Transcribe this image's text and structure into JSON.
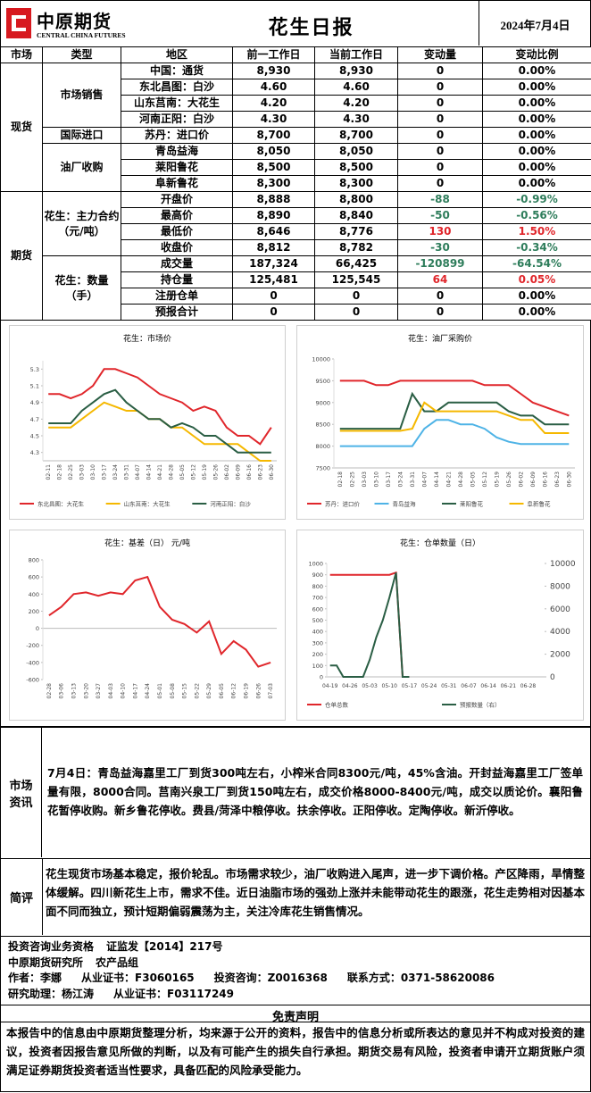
{
  "header": {
    "logo_cn": "中原期货",
    "logo_en": "CENTRAL CHINA FUTURES",
    "title": "花生日报",
    "date": "2024年7月4日"
  },
  "table": {
    "columns": [
      "市场",
      "类型",
      "地区",
      "前一工作日",
      "当前工作日",
      "变动量",
      "变动比例"
    ],
    "markets": [
      "现货",
      "期货"
    ],
    "types": [
      "市场销售",
      "国际进口",
      "油厂收购",
      "花生：主力合约（元/吨）",
      "花生：数量（手）"
    ],
    "rows": [
      [
        "中国：通货",
        "8,930",
        "8,930",
        "0",
        "0.00%"
      ],
      [
        "东北昌图：白沙",
        "4.60",
        "4.60",
        "0",
        "0.00%"
      ],
      [
        "山东莒南：大花生",
        "4.20",
        "4.20",
        "0",
        "0.00%"
      ],
      [
        "河南正阳：白沙",
        "4.30",
        "4.30",
        "0",
        "0.00%"
      ],
      [
        "苏丹：进口价",
        "8,700",
        "8,700",
        "0",
        "0.00%"
      ],
      [
        "青岛益海",
        "8,050",
        "8,050",
        "0",
        "0.00%"
      ],
      [
        "莱阳鲁花",
        "8,500",
        "8,500",
        "0",
        "0.00%"
      ],
      [
        "阜新鲁花",
        "8,300",
        "8,300",
        "0",
        "0.00%"
      ],
      [
        "开盘价",
        "8,888",
        "8,800",
        "-88",
        "-0.99%"
      ],
      [
        "最高价",
        "8,890",
        "8,840",
        "-50",
        "-0.56%"
      ],
      [
        "最低价",
        "8,646",
        "8,776",
        "130",
        "1.50%"
      ],
      [
        "收盘价",
        "8,812",
        "8,782",
        "-30",
        "-0.34%"
      ],
      [
        "成交量",
        "187,324",
        "66,425",
        "-120899",
        "-64.54%"
      ],
      [
        "持仓量",
        "125,481",
        "125,545",
        "64",
        "0.05%"
      ],
      [
        "注册仓单",
        "0",
        "0",
        "0",
        "0.00%"
      ],
      [
        "预报合计",
        "0",
        "0",
        "0",
        "0.00%"
      ]
    ]
  },
  "chart_data": [
    {
      "type": "line",
      "title": "花生：市场价",
      "categories": [
        "02-11",
        "02-18",
        "02-25",
        "03-03",
        "03-10",
        "03-17",
        "03-24",
        "03-31",
        "04-07",
        "04-14",
        "04-21",
        "04-28",
        "05-05",
        "05-12",
        "05-19",
        "05-26",
        "06-02",
        "06-09",
        "06-16",
        "06-23",
        "06-30"
      ],
      "ylim": [
        4.2,
        5.4
      ],
      "yticks": [
        4.3,
        4.5,
        4.7,
        4.9,
        5.1,
        5.3
      ],
      "series": [
        {
          "name": "东北昌图：大花生",
          "color": "#e0262b",
          "values": [
            5.0,
            5.0,
            4.95,
            5.0,
            5.1,
            5.3,
            5.3,
            5.25,
            5.2,
            5.1,
            5.0,
            4.95,
            4.9,
            4.8,
            4.85,
            4.8,
            4.6,
            4.5,
            4.5,
            4.4,
            4.6
          ]
        },
        {
          "name": "山东莒南：大花生",
          "color": "#f5b800",
          "values": [
            4.6,
            4.6,
            4.6,
            4.7,
            4.8,
            4.9,
            4.85,
            4.8,
            4.8,
            4.7,
            4.7,
            4.6,
            4.6,
            4.5,
            4.4,
            4.4,
            4.4,
            4.4,
            4.3,
            4.2,
            4.2
          ]
        },
        {
          "name": "河南正阳：白沙",
          "color": "#2a5e44",
          "values": [
            4.65,
            4.65,
            4.65,
            4.8,
            4.9,
            5.0,
            5.05,
            4.9,
            4.8,
            4.7,
            4.7,
            4.6,
            4.65,
            4.6,
            4.5,
            4.5,
            4.4,
            4.3,
            4.3,
            4.3,
            4.3
          ]
        }
      ]
    },
    {
      "type": "line",
      "title": "花生：油厂采购价",
      "categories": [
        "02-18",
        "02-25",
        "03-03",
        "03-10",
        "03-17",
        "03-24",
        "03-31",
        "04-07",
        "04-14",
        "04-21",
        "04-28",
        "05-05",
        "05-12",
        "05-19",
        "05-26",
        "06-02",
        "06-09",
        "06-16",
        "06-23",
        "06-30"
      ],
      "ylim": [
        7500,
        10000
      ],
      "yticks": [
        7500,
        8000,
        8500,
        9000,
        9500,
        10000
      ],
      "series": [
        {
          "name": "苏丹：进口价",
          "color": "#e0262b",
          "values": [
            9500,
            9500,
            9500,
            9400,
            9400,
            9500,
            9500,
            9500,
            9500,
            9500,
            9500,
            9500,
            9400,
            9400,
            9400,
            9200,
            9000,
            8900,
            8800,
            8700
          ]
        },
        {
          "name": "青岛益海",
          "color": "#4eb3e6",
          "values": [
            8000,
            8000,
            8000,
            8000,
            8000,
            8000,
            8000,
            8400,
            8600,
            8600,
            8500,
            8500,
            8400,
            8200,
            8100,
            8050,
            8050,
            8050,
            8050,
            8050
          ]
        },
        {
          "name": "莱阳鲁花",
          "color": "#2a5e44",
          "values": [
            8400,
            8400,
            8400,
            8400,
            8400,
            8400,
            9200,
            8800,
            8800,
            9000,
            9000,
            9000,
            9000,
            9000,
            8800,
            8700,
            8700,
            8500,
            8500,
            8500
          ]
        },
        {
          "name": "阜新鲁花",
          "color": "#f5b800",
          "values": [
            8350,
            8350,
            8350,
            8350,
            8350,
            8350,
            8400,
            9000,
            8800,
            8800,
            8800,
            8800,
            8800,
            8800,
            8700,
            8600,
            8600,
            8300,
            8300,
            8300
          ]
        }
      ]
    },
    {
      "type": "line",
      "title": "花生：基差（日）  元/吨",
      "categories": [
        "02-28",
        "03-06",
        "03-13",
        "03-20",
        "03-27",
        "04-03",
        "04-10",
        "04-17",
        "04-24",
        "05-01",
        "05-08",
        "05-15",
        "05-22",
        "05-29",
        "06-05",
        "06-12",
        "06-19",
        "06-26",
        "07-03"
      ],
      "ylim": [
        -600,
        800
      ],
      "yticks": [
        -600,
        -400,
        -200,
        0,
        200,
        400,
        600,
        800
      ],
      "series": [
        {
          "color": "#e0262b",
          "values": [
            150,
            250,
            400,
            420,
            380,
            420,
            400,
            560,
            600,
            250,
            100,
            50,
            -50,
            80,
            -300,
            -150,
            -250,
            -450,
            -400
          ]
        }
      ]
    },
    {
      "type": "line",
      "title": "花生：仓单数量（日）",
      "categories": [
        "04-19",
        null,
        null,
        "04-26",
        null,
        null,
        "05-03",
        null,
        null,
        "05-10",
        null,
        null,
        "05-17",
        null,
        null,
        "05-24",
        null,
        null,
        "05-31",
        null,
        null,
        "06-07",
        null,
        null,
        "06-14",
        null,
        null,
        "06-21",
        null,
        null,
        "06-28",
        null,
        null
      ],
      "ylim": [
        0,
        1000
      ],
      "yticks": [
        0,
        100,
        200,
        300,
        400,
        500,
        600,
        700,
        800,
        900,
        1000
      ],
      "y2lim": [
        0,
        10000
      ],
      "y2ticks": [
        0,
        2000,
        4000,
        6000,
        8000,
        10000
      ],
      "series": [
        {
          "name": "仓单总数",
          "color": "#e0262b",
          "values": [
            900,
            900,
            900,
            900,
            900,
            900,
            900,
            900,
            900,
            900,
            920,
            0,
            0,
            null,
            null,
            null,
            null,
            null,
            null,
            null,
            null,
            null,
            null,
            null,
            null,
            null,
            null,
            null,
            null,
            null,
            null,
            null,
            null
          ]
        },
        {
          "name": "预报数量（右）",
          "color": "#2a5e44",
          "axis": "y2",
          "values": [
            1000,
            1000,
            0,
            0,
            0,
            0,
            1500,
            3500,
            5000,
            7000,
            9200,
            0,
            0,
            null,
            null,
            null,
            null,
            null,
            null,
            null,
            null,
            null,
            null,
            null,
            null,
            null,
            null,
            null,
            null,
            null,
            null,
            null,
            null
          ]
        }
      ]
    }
  ],
  "news": {
    "label": "市场资讯",
    "text": "7月4日：青岛益海嘉里工厂到货300吨左右，小榨米合同8300元/吨，45%含油。开封益海嘉里工厂签单量有限，8000合同。莒南兴泉工厂到货150吨左右，成交价格8000-8400元/吨，成交以质论价。襄阳鲁花暂停收购。新乡鲁花停收。费县/菏泽中粮停收。扶余停收。正阳停收。定陶停收。新沂停收。"
  },
  "review": {
    "label": "简评",
    "text": "花生现货市场基本稳定，报价轮乱。市场需求较少，油厂收购进入尾声，进一步下调价格。产区降雨，旱情整体缓解。四川新花生上市，需求不佳。近日油脂市场的强劲上涨并未能带动花生的跟涨，花生走势相对因基本面不同而独立，预计短期偏弱震荡为主，关注冷库花生销售情况。"
  },
  "info": [
    [
      "投资咨询业务资格",
      "证监发【2014】217号"
    ],
    [
      "中原期货研究所",
      "农产品组"
    ],
    [
      "作者：李娜",
      "从业证书：F3060165",
      "投资咨询：Z0016368",
      "联系方式：0371-58620086"
    ],
    [
      "研究助理：杨江涛",
      "从业证书：F03117249"
    ]
  ],
  "disclaimer": {
    "title": "免责声明",
    "text": "本报告中的信息由中原期货整理分析，均来源于公开的资料，报告中的信息分析或所表达的意见并不构成对投资的建议，投资者因报告意见所做的判断，以及有可能产生的损失自行承担。期货交易有风险，投资者申请开立期货账户须满足证券期货投资者适当性要求，具备匹配的风险承受能力。"
  }
}
